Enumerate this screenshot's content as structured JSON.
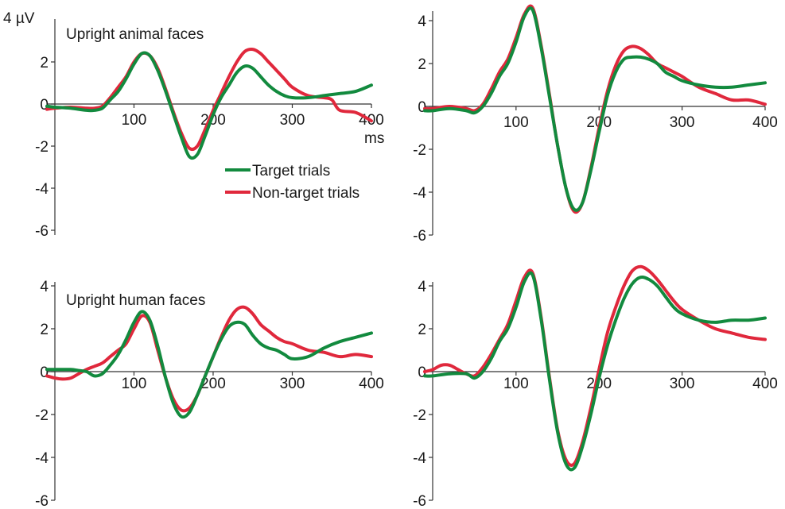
{
  "chart_data": [
    {
      "type": "line",
      "title": "Upright animal faces",
      "y_unit_label": "4 µV",
      "x_unit_label": "ms",
      "xlim": [
        -10,
        400
      ],
      "ylim": [
        -6,
        4
      ],
      "x_ticks": [
        100,
        200,
        300,
        400
      ],
      "y_ticks": [
        -6,
        -4,
        -2,
        0,
        2
      ],
      "y_tick_labels": [
        "-6",
        "-4",
        "-2",
        "0",
        "2"
      ],
      "grid": false,
      "legend": {
        "placement": "center-right",
        "entries": [
          {
            "label": "Target trials",
            "color": "#128a3e"
          },
          {
            "label": "Non-target trials",
            "color": "#e0283c"
          }
        ]
      },
      "series": [
        {
          "name": "Target trials",
          "color": "#128a3e",
          "x": [
            -10,
            0,
            20,
            40,
            50,
            60,
            70,
            80,
            90,
            100,
            110,
            120,
            130,
            140,
            150,
            160,
            170,
            180,
            190,
            200,
            210,
            220,
            230,
            240,
            250,
            260,
            270,
            280,
            290,
            300,
            320,
            340,
            360,
            380,
            400
          ],
          "y": [
            -0.1,
            -0.15,
            -0.2,
            -0.3,
            -0.3,
            -0.2,
            0.2,
            0.6,
            1.2,
            1.9,
            2.4,
            2.3,
            1.6,
            0.6,
            -0.5,
            -1.6,
            -2.5,
            -2.4,
            -1.5,
            -0.5,
            0.3,
            0.9,
            1.5,
            1.8,
            1.7,
            1.3,
            0.9,
            0.6,
            0.4,
            0.3,
            0.3,
            0.4,
            0.5,
            0.6,
            0.9
          ]
        },
        {
          "name": "Non-target trials",
          "color": "#e0283c",
          "x": [
            -10,
            0,
            20,
            40,
            50,
            60,
            70,
            80,
            90,
            100,
            110,
            120,
            130,
            140,
            150,
            160,
            170,
            180,
            190,
            200,
            210,
            220,
            230,
            240,
            250,
            260,
            270,
            280,
            290,
            300,
            320,
            340,
            350,
            360,
            380,
            400
          ],
          "y": [
            -0.25,
            -0.2,
            -0.15,
            -0.2,
            -0.2,
            -0.1,
            0.3,
            0.8,
            1.3,
            2.0,
            2.4,
            2.3,
            1.7,
            0.7,
            -0.4,
            -1.4,
            -2.1,
            -2.0,
            -1.2,
            -0.3,
            0.5,
            1.3,
            2.0,
            2.5,
            2.6,
            2.4,
            2.0,
            1.6,
            1.2,
            0.8,
            0.4,
            0.3,
            0.2,
            -0.3,
            -0.4,
            -0.8
          ]
        }
      ]
    },
    {
      "type": "line",
      "title": "",
      "xlim": [
        -10,
        400
      ],
      "ylim": [
        -6,
        4
      ],
      "x_ticks": [
        100,
        200,
        300,
        400
      ],
      "y_ticks": [
        -6,
        -4,
        -2,
        0,
        2,
        4
      ],
      "y_tick_labels": [
        "-6",
        "-4",
        "-2",
        "0",
        "2",
        "4"
      ],
      "grid": false,
      "series": [
        {
          "name": "Target trials",
          "color": "#128a3e",
          "x": [
            -10,
            0,
            20,
            40,
            50,
            60,
            70,
            80,
            90,
            100,
            110,
            120,
            130,
            140,
            150,
            160,
            170,
            180,
            190,
            200,
            210,
            220,
            230,
            240,
            250,
            260,
            270,
            280,
            290,
            300,
            320,
            340,
            360,
            380,
            400
          ],
          "y": [
            -0.2,
            -0.2,
            -0.1,
            -0.2,
            -0.3,
            0.0,
            0.6,
            1.4,
            2.0,
            3.0,
            4.2,
            4.5,
            2.8,
            0.5,
            -1.8,
            -3.8,
            -4.8,
            -4.5,
            -3.0,
            -1.2,
            0.5,
            1.6,
            2.2,
            2.3,
            2.3,
            2.2,
            2.0,
            1.6,
            1.4,
            1.2,
            1.0,
            0.9,
            0.9,
            1.0,
            1.1
          ]
        },
        {
          "name": "Non-target trials",
          "color": "#e0283c",
          "x": [
            -10,
            0,
            20,
            40,
            50,
            60,
            70,
            80,
            90,
            100,
            110,
            120,
            130,
            140,
            150,
            160,
            170,
            180,
            190,
            200,
            210,
            220,
            230,
            240,
            250,
            260,
            270,
            280,
            290,
            300,
            320,
            340,
            360,
            380,
            400
          ],
          "y": [
            -0.1,
            -0.1,
            0.0,
            -0.1,
            -0.2,
            0.1,
            0.8,
            1.6,
            2.2,
            3.2,
            4.3,
            4.6,
            2.9,
            0.6,
            -1.8,
            -3.8,
            -4.9,
            -4.5,
            -2.9,
            -1.0,
            0.7,
            1.9,
            2.6,
            2.8,
            2.7,
            2.4,
            2.0,
            1.8,
            1.6,
            1.4,
            0.9,
            0.6,
            0.3,
            0.3,
            0.1
          ]
        }
      ]
    },
    {
      "type": "line",
      "title": "Upright human faces",
      "xlim": [
        -10,
        400
      ],
      "ylim": [
        -6,
        4
      ],
      "x_ticks": [
        100,
        200,
        300,
        400
      ],
      "y_ticks": [
        -6,
        -4,
        -2,
        0,
        2,
        4
      ],
      "y_tick_labels": [
        "-6",
        "-4",
        "-2",
        "0",
        "2",
        "4"
      ],
      "grid": false,
      "series": [
        {
          "name": "Target trials",
          "color": "#128a3e",
          "x": [
            -10,
            0,
            20,
            30,
            40,
            50,
            60,
            70,
            80,
            90,
            100,
            110,
            120,
            130,
            140,
            150,
            160,
            170,
            180,
            190,
            200,
            210,
            220,
            230,
            240,
            250,
            260,
            270,
            280,
            290,
            300,
            320,
            340,
            360,
            380,
            400
          ],
          "y": [
            0.1,
            0.1,
            0.1,
            0.05,
            0.0,
            -0.2,
            -0.1,
            0.3,
            0.8,
            1.5,
            2.3,
            2.8,
            2.4,
            1.2,
            -0.3,
            -1.5,
            -2.1,
            -1.9,
            -1.1,
            -0.2,
            0.7,
            1.5,
            2.1,
            2.3,
            2.2,
            1.7,
            1.3,
            1.1,
            1.0,
            0.8,
            0.6,
            0.7,
            1.1,
            1.4,
            1.6,
            1.8
          ]
        },
        {
          "name": "Non-target trials",
          "color": "#e0283c",
          "x": [
            -10,
            0,
            10,
            20,
            30,
            40,
            50,
            60,
            70,
            80,
            90,
            100,
            110,
            120,
            130,
            140,
            150,
            160,
            170,
            180,
            190,
            200,
            210,
            220,
            230,
            240,
            250,
            260,
            270,
            280,
            290,
            300,
            320,
            340,
            360,
            380,
            400
          ],
          "y": [
            -0.2,
            -0.3,
            -0.35,
            -0.3,
            -0.1,
            0.1,
            0.25,
            0.4,
            0.7,
            1.0,
            1.3,
            2.0,
            2.6,
            2.3,
            1.0,
            -0.3,
            -1.3,
            -1.8,
            -1.7,
            -1.1,
            -0.2,
            0.7,
            1.6,
            2.4,
            2.9,
            3.0,
            2.7,
            2.2,
            1.9,
            1.6,
            1.4,
            1.3,
            1.0,
            0.9,
            0.7,
            0.8,
            0.7
          ]
        }
      ]
    },
    {
      "type": "line",
      "title": "",
      "xlim": [
        -10,
        400
      ],
      "ylim": [
        -6,
        4
      ],
      "x_ticks": [
        100,
        200,
        300,
        400
      ],
      "y_ticks": [
        -6,
        -4,
        -2,
        0,
        2,
        4
      ],
      "y_tick_labels": [
        "-6",
        "-4",
        "-2",
        "0",
        "2",
        "4"
      ],
      "grid": false,
      "series": [
        {
          "name": "Target trials",
          "color": "#128a3e",
          "x": [
            -10,
            0,
            20,
            40,
            50,
            60,
            70,
            80,
            90,
            100,
            110,
            120,
            130,
            140,
            150,
            160,
            170,
            180,
            190,
            200,
            210,
            220,
            230,
            240,
            250,
            260,
            270,
            280,
            290,
            300,
            320,
            340,
            360,
            380,
            400
          ],
          "y": [
            -0.2,
            -0.2,
            -0.1,
            -0.1,
            -0.3,
            0.0,
            0.6,
            1.4,
            2.0,
            3.0,
            4.2,
            4.5,
            2.5,
            -0.3,
            -2.8,
            -4.3,
            -4.5,
            -3.5,
            -2.0,
            -0.3,
            1.2,
            2.4,
            3.4,
            4.1,
            4.4,
            4.3,
            4.0,
            3.5,
            3.0,
            2.7,
            2.4,
            2.3,
            2.4,
            2.4,
            2.5
          ]
        },
        {
          "name": "Non-target trials",
          "color": "#e0283c",
          "x": [
            -10,
            0,
            10,
            20,
            30,
            40,
            50,
            60,
            70,
            80,
            90,
            100,
            110,
            120,
            130,
            140,
            150,
            160,
            170,
            180,
            190,
            200,
            210,
            220,
            230,
            240,
            250,
            260,
            270,
            280,
            290,
            300,
            320,
            340,
            360,
            380,
            400
          ],
          "y": [
            0.0,
            0.1,
            0.3,
            0.3,
            0.1,
            -0.1,
            -0.2,
            0.2,
            0.8,
            1.5,
            2.2,
            3.3,
            4.4,
            4.6,
            2.6,
            -0.2,
            -2.7,
            -4.1,
            -4.3,
            -3.3,
            -1.7,
            0.1,
            1.8,
            3.0,
            4.0,
            4.7,
            4.9,
            4.7,
            4.3,
            3.8,
            3.3,
            2.9,
            2.4,
            2.0,
            1.8,
            1.6,
            1.5
          ]
        }
      ]
    }
  ]
}
